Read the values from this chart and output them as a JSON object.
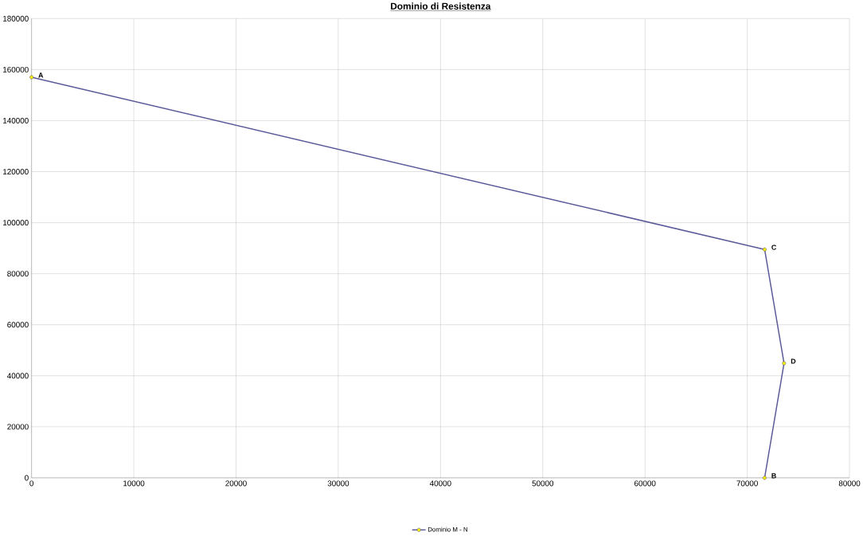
{
  "chart_data": {
    "type": "line",
    "title": "Dominio di Resistenza",
    "x": [
      0,
      71700,
      73600,
      71700
    ],
    "series": [
      {
        "name": "Dominio M - N",
        "color": "#5a5a9a",
        "values": [
          157000,
          89500,
          44900,
          0
        ]
      }
    ],
    "marker": "circle",
    "legend": "bottom",
    "grid": true,
    "xlim": [
      0,
      80000
    ],
    "xticks": [
      0,
      10000,
      20000,
      30000,
      40000,
      50000,
      60000,
      70000,
      80000
    ],
    "ylim": [
      0,
      180000
    ],
    "yticks": [
      0,
      20000,
      40000,
      60000,
      80000,
      100000,
      120000,
      140000,
      160000,
      180000
    ],
    "annotations": [
      {
        "text": "A",
        "x": 0,
        "y": 157000
      },
      {
        "text": "C",
        "x": 71700,
        "y": 89500
      },
      {
        "text": "D",
        "x": 73600,
        "y": 44900
      },
      {
        "text": "B",
        "x": 71700,
        "y": 0
      }
    ]
  }
}
